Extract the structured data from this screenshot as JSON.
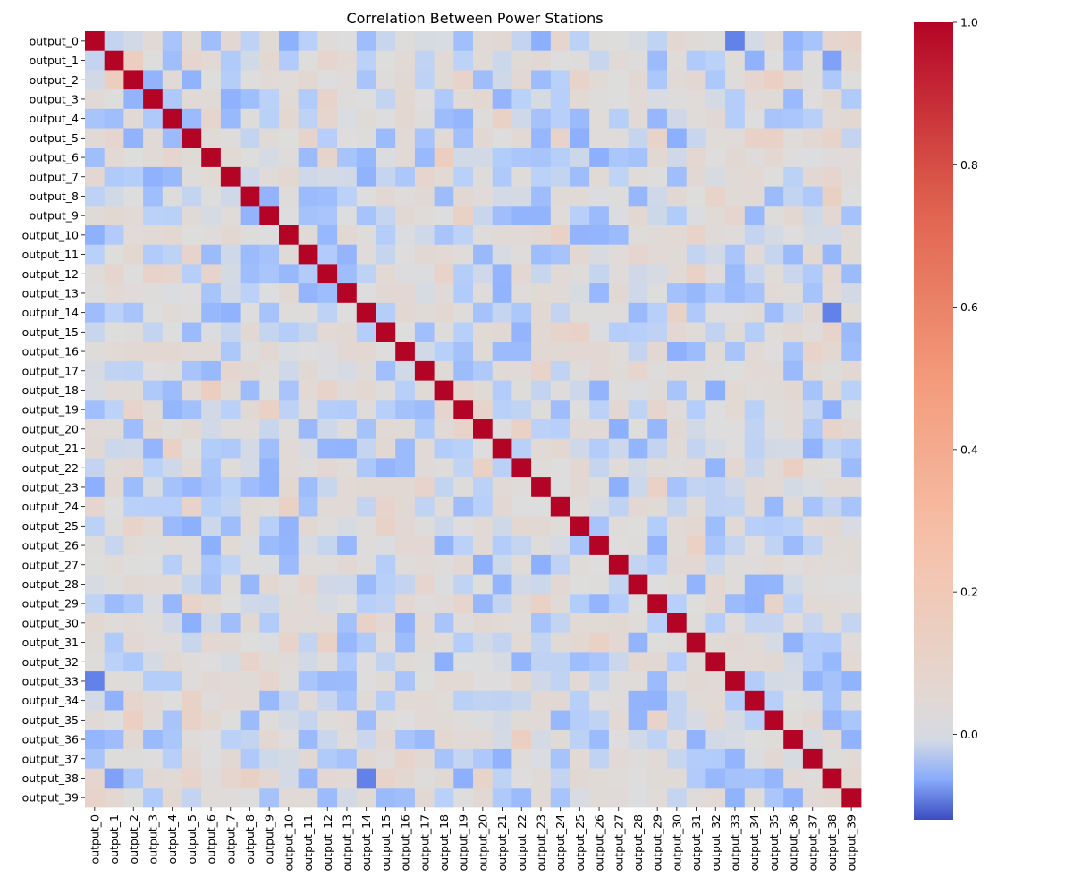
{
  "chart_data": {
    "type": "heatmap",
    "title": "Correlation Between Power Stations",
    "xlabel": "",
    "ylabel": "",
    "labels": [
      "output_0",
      "output_1",
      "output_2",
      "output_3",
      "output_4",
      "output_5",
      "output_6",
      "output_7",
      "output_8",
      "output_9",
      "output_10",
      "output_11",
      "output_12",
      "output_13",
      "output_14",
      "output_15",
      "output_16",
      "output_17",
      "output_18",
      "output_19",
      "output_20",
      "output_21",
      "output_22",
      "output_23",
      "output_24",
      "output_25",
      "output_26",
      "output_27",
      "output_28",
      "output_29",
      "output_30",
      "output_31",
      "output_32",
      "output_33",
      "output_34",
      "output_35",
      "output_36",
      "output_37",
      "output_38",
      "output_39"
    ],
    "vmin": -0.12,
    "vmax": 1.0,
    "colormap": "coolwarm",
    "colorbar_ticks": [
      1.0,
      0.8,
      0.6,
      0.4,
      0.2,
      0.0
    ],
    "colorbar_tick_labels": [
      "1.0",
      "0.8",
      "0.6",
      "0.4",
      "0.2",
      "0.0"
    ],
    "diagonal": 1.0,
    "off_diagonal_range": [
      -0.1,
      0.2
    ],
    "notable_values": [
      [
        0,
        1,
        -0.02
      ],
      [
        0,
        23,
        -0.06
      ],
      [
        0,
        24,
        0.08
      ],
      [
        0,
        33,
        -0.09
      ],
      [
        0,
        38,
        0.08
      ],
      [
        0,
        39,
        0.1
      ],
      [
        1,
        2,
        0.15
      ],
      [
        1,
        5,
        0.08
      ],
      [
        1,
        12,
        0.08
      ],
      [
        1,
        38,
        -0.07
      ],
      [
        2,
        19,
        0.1
      ],
      [
        2,
        25,
        0.1
      ],
      [
        2,
        34,
        0.08
      ],
      [
        2,
        35,
        0.14
      ],
      [
        3,
        12,
        0.1
      ],
      [
        3,
        20,
        0.06
      ],
      [
        4,
        6,
        0.08
      ],
      [
        4,
        12,
        0.08
      ],
      [
        4,
        21,
        0.12
      ],
      [
        5,
        11,
        0.09
      ],
      [
        5,
        15,
        -0.05
      ],
      [
        5,
        24,
        0.1
      ],
      [
        5,
        25,
        -0.06
      ],
      [
        5,
        29,
        0.1
      ],
      [
        5,
        34,
        0.11
      ],
      [
        5,
        35,
        0.11
      ],
      [
        5,
        38,
        0.1
      ],
      [
        6,
        11,
        -0.05
      ],
      [
        6,
        12,
        0.09
      ],
      [
        6,
        18,
        0.15
      ],
      [
        6,
        26,
        -0.06
      ],
      [
        6,
        31,
        0.07
      ],
      [
        7,
        17,
        0.08
      ],
      [
        7,
        38,
        0.08
      ],
      [
        8,
        11,
        -0.05
      ],
      [
        8,
        32,
        0.1
      ],
      [
        8,
        38,
        0.13
      ],
      [
        9,
        19,
        0.12
      ],
      [
        9,
        33,
        0.08
      ],
      [
        10,
        24,
        0.12
      ],
      [
        10,
        27,
        -0.05
      ],
      [
        10,
        31,
        0.1
      ],
      [
        11,
        17,
        0.05
      ],
      [
        11,
        28,
        0.08
      ],
      [
        12,
        18,
        0.1
      ],
      [
        12,
        31,
        0.12
      ],
      [
        12,
        39,
        -0.05
      ],
      [
        13,
        33,
        -0.05
      ],
      [
        14,
        30,
        0.11
      ],
      [
        14,
        38,
        -0.09
      ],
      [
        15,
        24,
        0.09
      ],
      [
        15,
        25,
        0.11
      ],
      [
        15,
        38,
        0.1
      ],
      [
        16,
        21,
        -0.05
      ],
      [
        16,
        22,
        -0.05
      ],
      [
        16,
        37,
        0.1
      ],
      [
        17,
        23,
        0.1
      ],
      [
        17,
        28,
        0.08
      ],
      [
        18,
        19,
        0.08
      ],
      [
        18,
        32,
        -0.06
      ],
      [
        19,
        20,
        0.1
      ],
      [
        19,
        29,
        0.08
      ],
      [
        20,
        22,
        0.12
      ],
      [
        20,
        38,
        0.1
      ],
      [
        22,
        36,
        0.14
      ],
      [
        22,
        39,
        -0.05
      ],
      [
        23,
        27,
        -0.06
      ],
      [
        23,
        29,
        0.12
      ],
      [
        26,
        31,
        0.12
      ],
      [
        26,
        32,
        -0.04
      ],
      [
        29,
        35,
        0.1
      ]
    ]
  }
}
